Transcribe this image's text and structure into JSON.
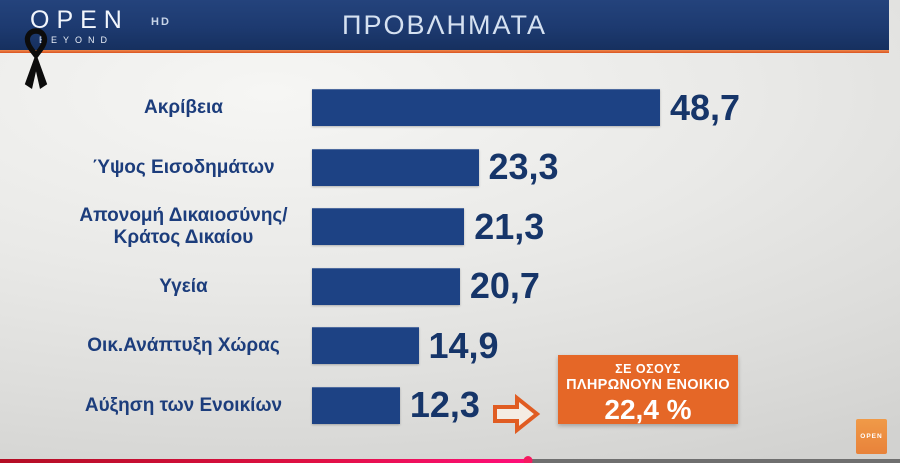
{
  "header": {
    "logo": {
      "brand": "OPEN",
      "hd": "HD",
      "tagline": "BEYOND"
    },
    "title": "ΠΡΟΒΛΗΜΑΤΑ",
    "colors": {
      "bar_bg": "#1d3a70",
      "accent_line": "#d9531f"
    }
  },
  "chart_data": {
    "type": "bar",
    "orientation": "horizontal",
    "title": "ΠΡΟΒΛΗΜΑΤΑ",
    "categories": [
      "Ακρίβεια",
      "Ύψος Εισοδημάτων",
      "Απονομή Δικαιοσύνης/ Κράτος Δικαίου",
      "Υγεία",
      "Οικ.Ανάπτυξη Χώρας",
      "Αύξηση των Ενοικίων"
    ],
    "values": [
      48.7,
      23.3,
      21.3,
      20.7,
      14.9,
      12.3
    ],
    "value_labels": [
      "48,7",
      "23,3",
      "21,3",
      "20,7",
      "14,9",
      "12,3"
    ],
    "label_lines": [
      [
        "Ακρίβεια"
      ],
      [
        "Ύψος Εισοδημάτων"
      ],
      [
        "Απονομή Δικαιοσύνης/",
        "Κράτος Δικαίου"
      ],
      [
        "Υγεία"
      ],
      [
        "Οικ.Ανάπτυξη Χώρας"
      ],
      [
        "Αύξηση των Ενοικίων"
      ]
    ],
    "xlim": [
      0,
      50
    ],
    "grid": false,
    "legend": false,
    "bar_color": "#1d4284",
    "label_color": "#1c3d7c",
    "value_color": "#163569"
  },
  "annotation": {
    "line1": "ΣΕ ΟΣΟΥΣ",
    "line2": "ΠΛΗΡΩΝΟΥΝ ΕΝΟΙΚΙΟ",
    "value": "22,4 %",
    "applies_to": "Αύξηση των Ενοικίων",
    "bg_color": "#e56727"
  },
  "watermark": {
    "text": "OPEN",
    "bg_color": "#e8823a"
  },
  "player": {
    "progress_percent": 58.7
  }
}
